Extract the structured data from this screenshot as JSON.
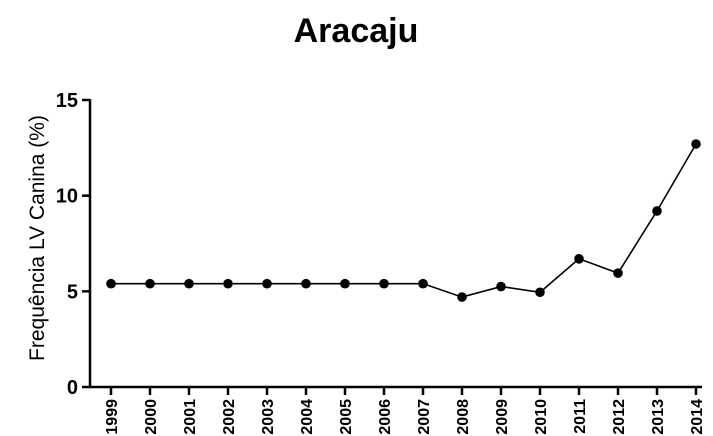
{
  "chart_data": {
    "type": "line",
    "title": "Aracaju",
    "xlabel": "",
    "ylabel": "Frequência LV Canina (%)",
    "ylim": [
      0,
      15
    ],
    "yticks": [
      0,
      5,
      10,
      15
    ],
    "grid": false,
    "x": [
      "1999",
      "2000",
      "2001",
      "2002",
      "2003",
      "2004",
      "2005",
      "2006",
      "2007",
      "2008",
      "2009",
      "2010",
      "2011",
      "2012",
      "2013",
      "2014"
    ],
    "series": [
      {
        "values": [
          5.4,
          5.4,
          5.4,
          5.4,
          5.4,
          5.4,
          5.4,
          5.4,
          5.4,
          4.7,
          5.25,
          4.95,
          6.7,
          5.95,
          9.2,
          12.7
        ],
        "color": "#000000"
      }
    ]
  }
}
